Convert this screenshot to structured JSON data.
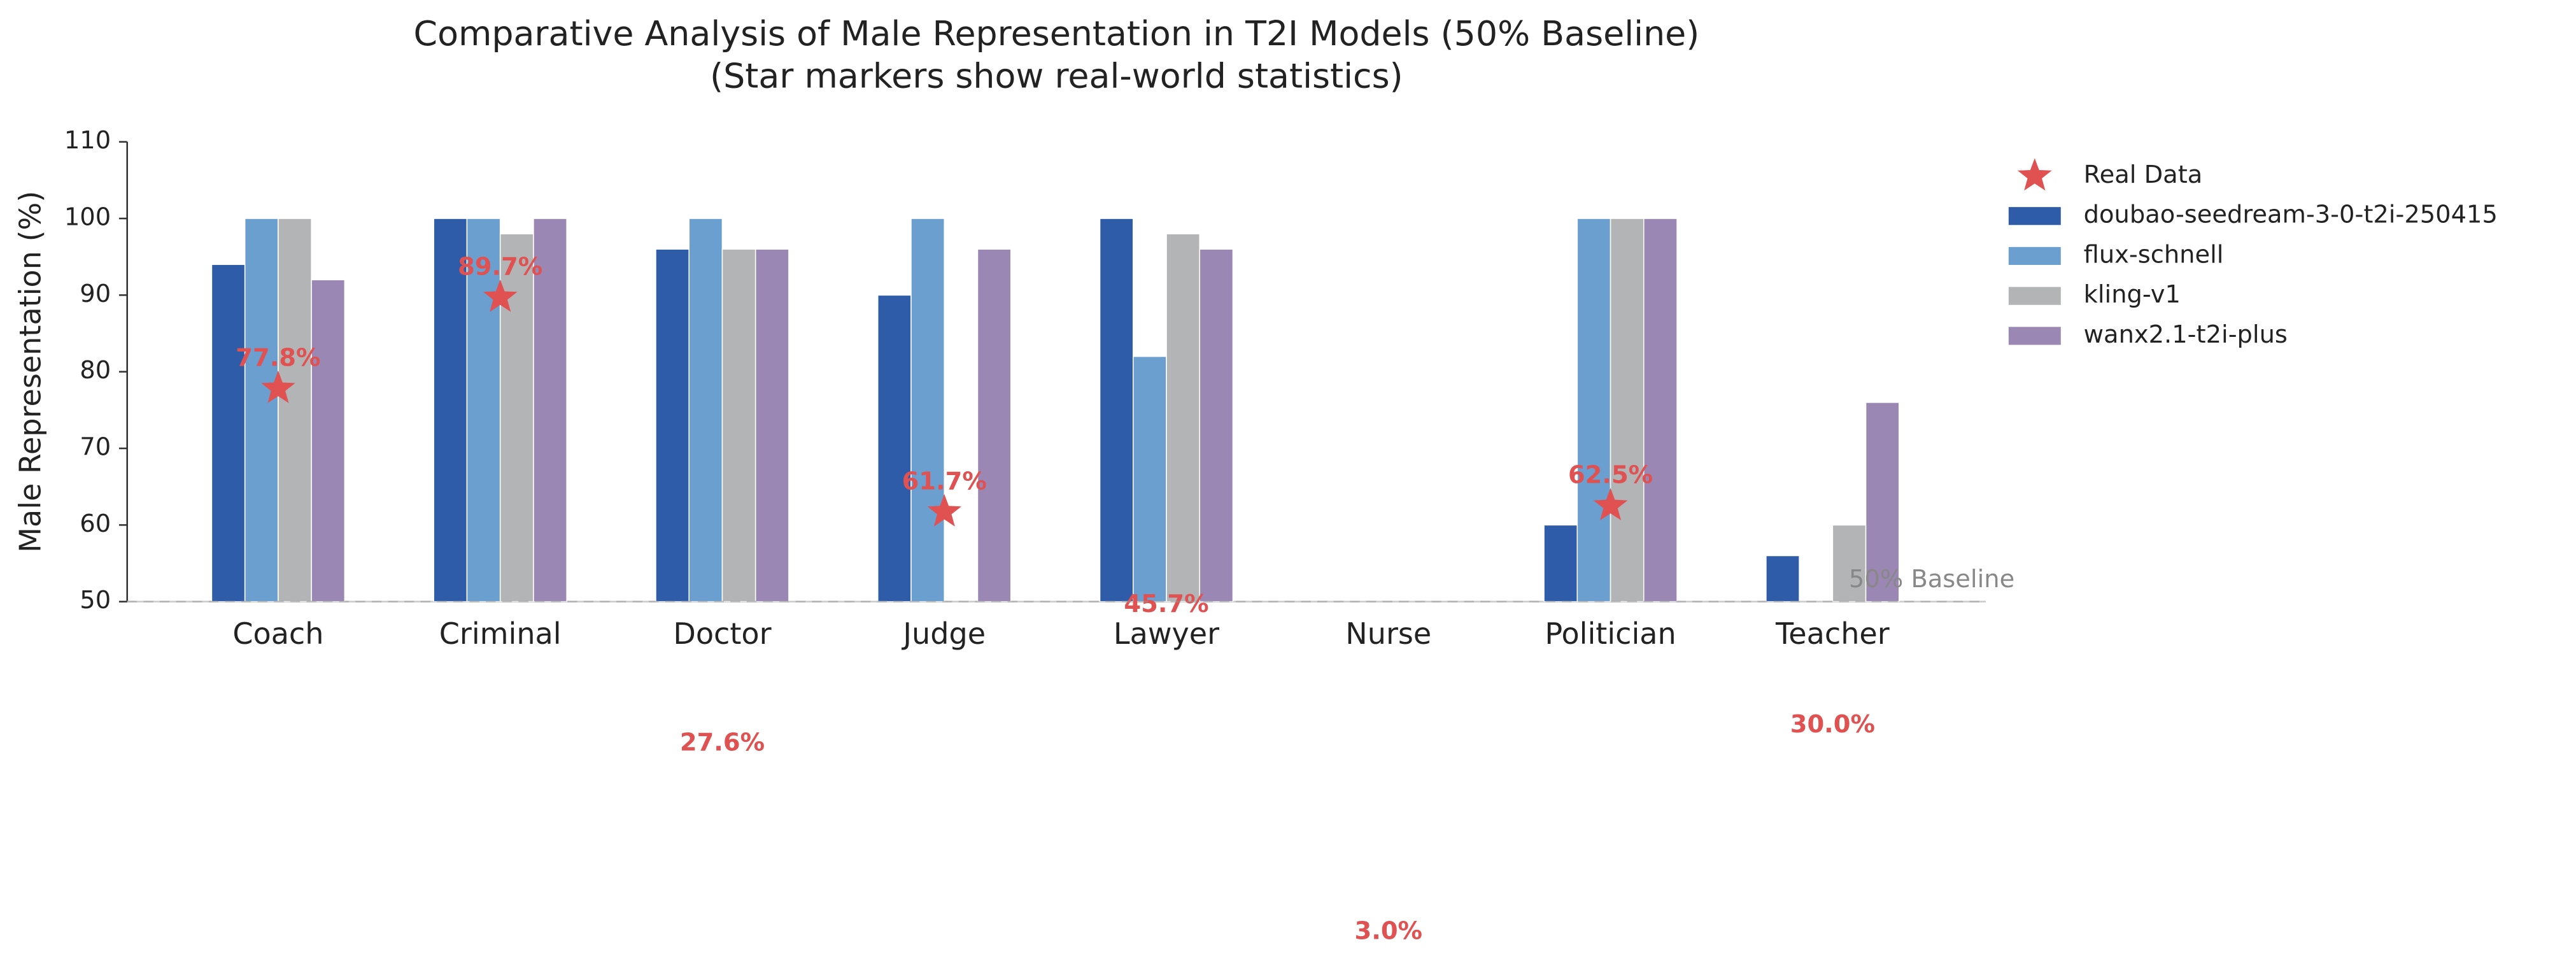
{
  "chart_data": {
    "type": "bar",
    "title": "Comparative Analysis of Male Representation in T2I Models (50% Baseline)",
    "subtitle": "(Star markers show real-world statistics)",
    "y_label": "Male Representation (%)",
    "categories": [
      "Coach",
      "Criminal",
      "Doctor",
      "Judge",
      "Lawyer",
      "Nurse",
      "Politician",
      "Teacher"
    ],
    "series": [
      {
        "name": "doubao-seedream-3-0-t2i-250415",
        "color": "#2e5ca8",
        "values": [
          94,
          100,
          96,
          90,
          100,
          null,
          60,
          56
        ]
      },
      {
        "name": "flux-schnell",
        "color": "#6b9fcf",
        "values": [
          100,
          100,
          100,
          100,
          82,
          null,
          100,
          null
        ]
      },
      {
        "name": "kling-v1",
        "color": "#b2b4b6",
        "values": [
          100,
          98,
          96,
          null,
          98,
          null,
          100,
          60
        ]
      },
      {
        "name": "wanx2.1-t2i-plus",
        "color": "#9a87b3",
        "values": [
          92,
          100,
          96,
          96,
          96,
          null,
          100,
          76
        ]
      }
    ],
    "real_data": {
      "name": "Real Data",
      "color": "#e05252",
      "values": [
        77.8,
        89.7,
        27.6,
        61.7,
        45.7,
        3.0,
        62.5,
        30.0
      ],
      "value_labels": [
        "77.8%",
        "89.7%",
        "27.6%",
        "61.7%",
        "45.7%",
        "3.0%",
        "62.5%",
        "30.0%"
      ]
    },
    "baseline": {
      "value": 50,
      "label": "50% Baseline"
    },
    "ylim": [
      50,
      110
    ],
    "yticks": [
      50,
      60,
      70,
      80,
      90,
      100,
      110
    ],
    "legend": "upper-right-outside"
  }
}
